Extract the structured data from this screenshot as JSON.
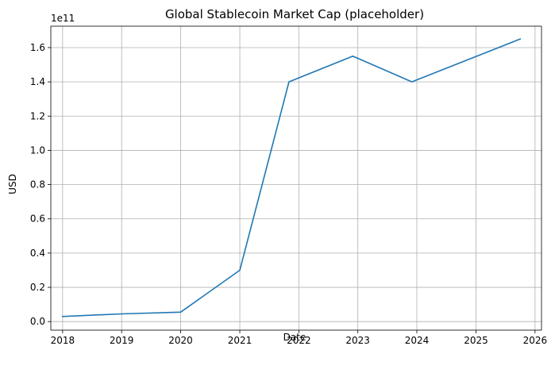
{
  "chart_data": {
    "type": "line",
    "title": "Global Stablecoin Market Cap (placeholder)",
    "xlabel": "Date",
    "ylabel": "USD",
    "y_offset_label": "1e11",
    "grid": true,
    "legend": "none",
    "x_ticks": [
      "2018",
      "2019",
      "2020",
      "2021",
      "2022",
      "2023",
      "2024",
      "2025",
      "2026"
    ],
    "y_ticks": [
      "0.0",
      "0.2",
      "0.4",
      "0.6",
      "0.8",
      "1.0",
      "1.2",
      "1.4",
      "1.6"
    ],
    "xlim": [
      "2017-10-20",
      "2026-02-10"
    ],
    "ylim": [
      -5000000000,
      172500000000
    ],
    "series": [
      {
        "color": "#1f77b4",
        "points": [
          {
            "x": "2018-01-01",
            "y": 3000000000
          },
          {
            "x": "2019-01-01",
            "y": 4500000000
          },
          {
            "x": "2020-01-01",
            "y": 5500000000
          },
          {
            "x": "2021-01-01",
            "y": 30000000000
          },
          {
            "x": "2021-11-01",
            "y": 140000000000
          },
          {
            "x": "2022-12-01",
            "y": 155000000000
          },
          {
            "x": "2023-12-01",
            "y": 140000000000
          },
          {
            "x": "2025-10-01",
            "y": 165000000000
          }
        ]
      }
    ]
  },
  "colors": {
    "grid": "#b0b0b0",
    "axis": "#000000",
    "background": "#ffffff"
  }
}
